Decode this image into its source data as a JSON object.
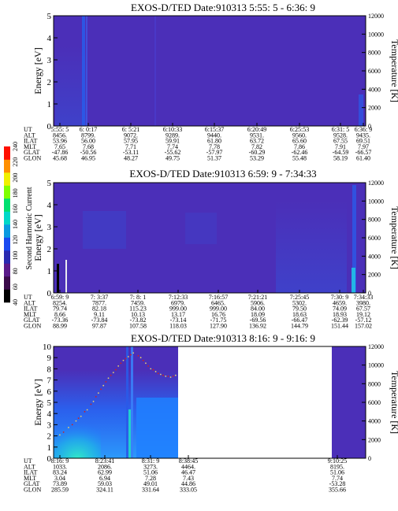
{
  "colorbar": {
    "label": "Second Harmonic Current",
    "ticks": [
      "40",
      "60",
      "80",
      "100",
      "120",
      "140",
      "160",
      "180",
      "200",
      "220",
      "240"
    ],
    "colors": [
      "#000000",
      "#3a0a4a",
      "#5a1a8a",
      "#2a2ab0",
      "#1a4af0",
      "#0a9ae0",
      "#00d8c8",
      "#00e070",
      "#80ff00",
      "#f0f000",
      "#ff9000",
      "#ff1000"
    ]
  },
  "colors": {
    "background_plot": "#4b2fb8",
    "streak": "#2a5ae8",
    "high_flux": "#2080ff",
    "cyan_low": "#20d0d0",
    "yellow_dots": "#e8d070",
    "red_dots": "#d02020"
  },
  "chart_data": [
    {
      "type": "heatmap",
      "title": "EXOS-D/TED   Date:910313  5:55: 5 - 6:36: 9",
      "ylabel": "Energy [eV]",
      "y2label": "Temperature [K]",
      "ylim": [
        0,
        5
      ],
      "y2lim": [
        0,
        12000
      ],
      "yticks": [
        "0",
        "1",
        "2",
        "3",
        "4",
        "5"
      ],
      "y2ticks": [
        "0",
        "2000",
        "4000",
        "6000",
        "8000",
        "10000",
        "12000"
      ],
      "grid": false,
      "table_labels": [
        "UT",
        "ALT",
        "ILAT",
        "MLT",
        "GLAT",
        "GLON"
      ],
      "columns": [
        {
          "UT": "5:55: 5",
          "ALT": "8456.",
          "ILAT": "53.96",
          "MLT": "7.65",
          "GLAT": "-47.86",
          "GLON": "45.68"
        },
        {
          "UT": "6: 0:17",
          "ALT": "8799.",
          "ILAT": "56.00",
          "MLT": "7.68",
          "GLAT": "-50.56",
          "GLON": "46.95"
        },
        {
          "UT": "6: 5:21",
          "ALT": "9072.",
          "ILAT": "57.95",
          "MLT": "7.71",
          "GLAT": "-53.11",
          "GLON": "48.27"
        },
        {
          "UT": "6:10:33",
          "ALT": "9289.",
          "ILAT": "59.91",
          "MLT": "7.74",
          "GLAT": "-55.62",
          "GLON": "49.75"
        },
        {
          "UT": "6:15:37",
          "ALT": "9440.",
          "ILAT": "61.80",
          "MLT": "7.78",
          "GLAT": "-57.97",
          "GLON": "51.37"
        },
        {
          "UT": "6:20:49",
          "ALT": "9531.",
          "ILAT": "63.72",
          "MLT": "7.82",
          "GLAT": "-60.29",
          "GLON": "53.29"
        },
        {
          "UT": "6:25:53",
          "ALT": "9560.",
          "ILAT": "65.60",
          "MLT": "7.86",
          "GLAT": "-62.46",
          "GLON": "55.48"
        },
        {
          "UT": "6:31: 5",
          "ALT": "9528.",
          "ILAT": "67.55",
          "MLT": "7.91",
          "GLAT": "-64.59",
          "GLON": "58.19"
        },
        {
          "UT": "6:36: 9",
          "ALT": "9435.",
          "ILAT": "69.51",
          "MLT": "7.97",
          "GLAT": "-66.57",
          "GLON": "61.40"
        }
      ]
    },
    {
      "type": "heatmap",
      "title": "EXOS-D/TED   Date:910313  6:59: 9 - 7:34:33",
      "ylabel": "Energy [eV]",
      "y2label": "Temperature [K]",
      "ylim": [
        0,
        5
      ],
      "y2lim": [
        0,
        12000
      ],
      "yticks": [
        "0",
        "1",
        "2",
        "3",
        "4",
        "5"
      ],
      "y2ticks": [
        "0",
        "2000",
        "4000",
        "6000",
        "8000",
        "10000",
        "12000"
      ],
      "grid": false,
      "table_labels": [
        "UT",
        "ALT",
        "ILAT",
        "MLT",
        "GLAT",
        "GLON"
      ],
      "columns": [
        {
          "UT": "6:59: 9",
          "ALT": "8254.",
          "ILAT": "79.74",
          "MLT": "8.66",
          "GLAT": "-73.36",
          "GLON": "88.99"
        },
        {
          "UT": "7: 3:37",
          "ALT": "7877.",
          "ILAT": "82.18",
          "MLT": "9.11",
          "GLAT": "-73.84",
          "GLON": "97.87"
        },
        {
          "UT": "7: 8: 1",
          "ALT": "7459.",
          "ILAT": "115.23",
          "MLT": "10.13",
          "GLAT": "-73.82",
          "GLON": "107.58"
        },
        {
          "UT": "7:12:33",
          "ALT": "6979.",
          "ILAT": "999.00",
          "MLT": "13.17",
          "GLAT": "-73.14",
          "GLON": "118.03"
        },
        {
          "UT": "7:16:57",
          "ALT": "6465.",
          "ILAT": "999.00",
          "MLT": "16.76",
          "GLAT": "-71.75",
          "GLON": "127.90"
        },
        {
          "UT": "7:21:21",
          "ALT": "5906.",
          "ILAT": "84.00",
          "MLT": "18.09",
          "GLAT": "-69.56",
          "GLON": "136.92"
        },
        {
          "UT": "7:25:45",
          "ALT": "5302.",
          "ILAT": "79.50",
          "MLT": "18.63",
          "GLAT": "-66.47",
          "GLON": "144.79"
        },
        {
          "UT": "7:30: 9",
          "ALT": "4659.",
          "ILAT": "74.09",
          "MLT": "18.93",
          "GLAT": "-62.39",
          "GLON": "151.44"
        },
        {
          "UT": "7:34:33",
          "ALT": "3980.",
          "ILAT": "67.57",
          "MLT": "19.12",
          "GLAT": "-57.12",
          "GLON": "157.02"
        }
      ]
    },
    {
      "type": "heatmap",
      "title": "EXOS-D/TED   Date:910313  8:16: 9 - 9:16: 9",
      "ylabel": "Energy [eV]",
      "y2label": "Temperature [K]",
      "ylim": [
        0,
        10
      ],
      "y2lim": [
        0,
        12000
      ],
      "yticks": [
        "0",
        "1",
        "2",
        "3",
        "4",
        "5",
        "6",
        "7",
        "8",
        "9",
        "10"
      ],
      "y2ticks": [
        "0",
        "2000",
        "4000",
        "6000",
        "8000",
        "10000",
        "12000"
      ],
      "grid": false,
      "table_labels": [
        "UT",
        "ALT",
        "ILAT",
        "MLT",
        "GLAT",
        "GLON"
      ],
      "columns": [
        {
          "UT": "8:16: 9",
          "ALT": "1033.",
          "ILAT": "83.24",
          "MLT": "3.04",
          "GLAT": "73.89",
          "GLON": "285.59"
        },
        {
          "UT": "8:23:41",
          "ALT": "2086.",
          "ILAT": "62.99",
          "MLT": "6.94",
          "GLAT": "59.03",
          "GLON": "324.11"
        },
        {
          "UT": "8:31: 9",
          "ALT": "3273.",
          "ILAT": "51.06",
          "MLT": "7.28",
          "GLAT": "49.01",
          "GLON": "331.64"
        },
        {
          "UT": "8:38:45",
          "ALT": "4464.",
          "ILAT": "46.47",
          "MLT": "7.43",
          "GLAT": "44.86",
          "GLON": "333.05"
        },
        {
          "UT": "9:10:25",
          "ALT": "8195.",
          "ILAT": "51.06",
          "MLT": "7.74",
          "GLAT": "-53.28",
          "GLON": "355.66"
        }
      ]
    }
  ]
}
